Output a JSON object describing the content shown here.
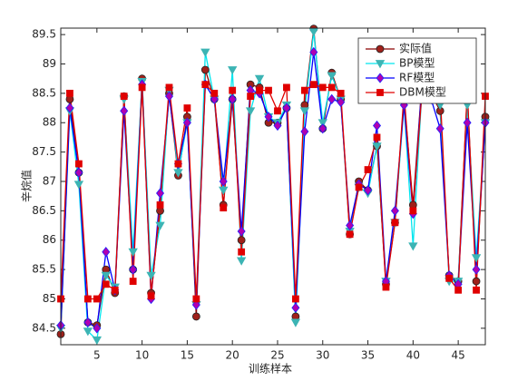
{
  "chart_data": {
    "type": "line",
    "xlabel": "训练样本",
    "ylabel": "辛烷值",
    "x": [
      1,
      2,
      3,
      4,
      5,
      6,
      7,
      8,
      9,
      10,
      11,
      12,
      13,
      14,
      15,
      16,
      17,
      18,
      19,
      20,
      21,
      22,
      23,
      24,
      25,
      26,
      27,
      28,
      29,
      30,
      31,
      32,
      33,
      34,
      35,
      36,
      37,
      38,
      39,
      40,
      41,
      42,
      43,
      44,
      45,
      46,
      47,
      48
    ],
    "xlim": [
      1,
      48
    ],
    "xticks": [
      5,
      10,
      15,
      20,
      25,
      30,
      35,
      40,
      45
    ],
    "ylim": [
      84.22,
      89.61
    ],
    "yticks": [
      84.5,
      85,
      85.5,
      86,
      86.5,
      87,
      87.5,
      88,
      88.5,
      89,
      89.5
    ],
    "legend": "northeast",
    "series": [
      {
        "name": "实际值",
        "color": "#8b0000",
        "marker": "circle",
        "marker_color": "#a0201a",
        "values": [
          84.4,
          88.4,
          87.15,
          84.6,
          84.55,
          85.5,
          85.1,
          88.45,
          85.5,
          88.75,
          85.1,
          86.5,
          88.5,
          87.1,
          88.1,
          84.7,
          88.9,
          88.4,
          86.6,
          88.4,
          86.0,
          88.65,
          88.6,
          88.0,
          88.0,
          88.25,
          84.7,
          88.3,
          89.6,
          87.9,
          88.85,
          88.4,
          86.1,
          87.0,
          86.85,
          87.6,
          85.25,
          86.3,
          88.4,
          86.6,
          88.7,
          88.5,
          88.2,
          85.4,
          85.3,
          88.5,
          85.3,
          88.1
        ]
      },
      {
        "name": "BP模型",
        "color": "#00e5ee",
        "marker": "triangle-down",
        "marker_color": "#3cb4b4",
        "values": [
          84.5,
          88.2,
          86.95,
          84.45,
          84.3,
          85.4,
          85.2,
          88.4,
          85.8,
          88.7,
          85.4,
          86.25,
          88.55,
          87.15,
          88.0,
          84.9,
          89.2,
          88.4,
          86.85,
          88.9,
          85.65,
          88.2,
          88.75,
          88.1,
          88.0,
          88.3,
          84.6,
          88.2,
          89.55,
          88.0,
          88.8,
          88.4,
          86.15,
          86.9,
          86.8,
          87.6,
          85.3,
          86.3,
          88.3,
          85.9,
          88.6,
          88.5,
          88.3,
          85.3,
          85.3,
          88.3,
          85.7,
          88.0
        ]
      },
      {
        "name": "RF模型",
        "color": "#0000ff",
        "marker": "diamond",
        "marker_color": "#b000b0",
        "values": [
          84.55,
          88.25,
          87.15,
          84.6,
          84.5,
          85.8,
          85.15,
          88.2,
          85.5,
          88.65,
          85.0,
          86.8,
          88.45,
          87.3,
          88.0,
          84.9,
          88.65,
          88.4,
          87.0,
          88.4,
          86.15,
          88.55,
          88.5,
          88.1,
          87.95,
          88.25,
          84.85,
          87.85,
          89.2,
          87.9,
          88.4,
          88.35,
          86.25,
          86.95,
          86.85,
          87.95,
          85.3,
          86.5,
          88.3,
          86.45,
          88.7,
          88.4,
          87.9,
          85.4,
          85.25,
          88.0,
          85.5,
          88.0
        ]
      },
      {
        "name": "DBM模型",
        "color": "#e00000",
        "marker": "square",
        "marker_color": "#e00000",
        "values": [
          85.0,
          88.5,
          87.3,
          85.0,
          85.0,
          85.25,
          85.15,
          88.45,
          85.3,
          88.6,
          85.05,
          86.6,
          88.6,
          87.3,
          88.25,
          85.0,
          88.65,
          88.5,
          86.55,
          88.55,
          85.8,
          88.45,
          88.55,
          88.55,
          88.2,
          88.6,
          85.0,
          88.55,
          88.65,
          88.6,
          88.6,
          88.5,
          86.1,
          86.9,
          87.2,
          87.75,
          85.2,
          86.3,
          88.5,
          86.5,
          88.55,
          88.5,
          88.5,
          85.35,
          85.15,
          88.55,
          85.15,
          88.45
        ]
      }
    ]
  }
}
